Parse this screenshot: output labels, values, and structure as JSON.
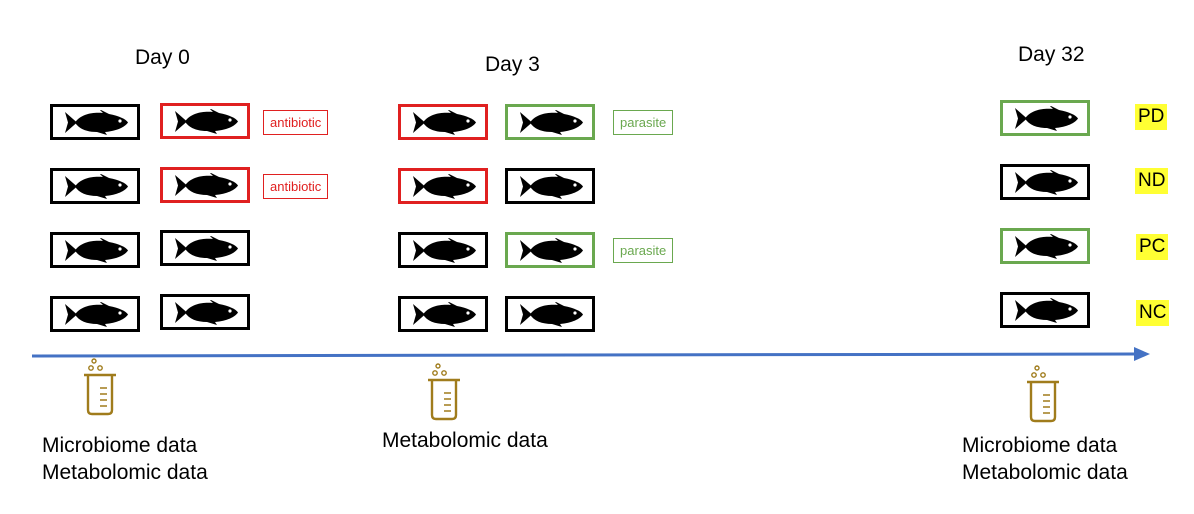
{
  "days": [
    "Day 0",
    "Day 3",
    "Day 32"
  ],
  "treatments": {
    "antibiotic": "antibiotic",
    "parasite": "parasite"
  },
  "groups": [
    "PD",
    "ND",
    "PC",
    "NC"
  ],
  "data_labels": {
    "day0": [
      "Microbiome data",
      "Metabolomic data"
    ],
    "day3": [
      "Metabolomic data"
    ],
    "day32": [
      "Microbiome data",
      "Metabolomic data"
    ]
  },
  "colors": {
    "antibiotic": "#e02020",
    "parasite": "#6aa84f",
    "timeline": "#4472c4",
    "beaker": "#a07c1c",
    "group_highlight": "#ffff33"
  },
  "icons": {
    "tank": "fish-icon",
    "sample": "beaker-icon"
  }
}
